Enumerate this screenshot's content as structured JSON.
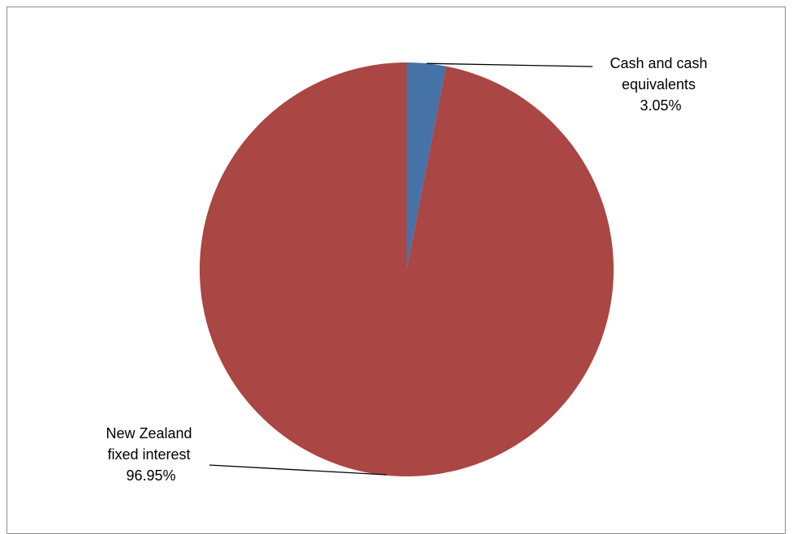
{
  "chart_data": {
    "type": "pie",
    "title": "",
    "slices": [
      {
        "name": "Cash and cash equivalents",
        "value": 3.05,
        "label_lines": [
          "Cash and cash",
          "equivalents",
          "3.05%"
        ],
        "color": "#4572A7"
      },
      {
        "name": "New Zealand fixed interest",
        "value": 96.95,
        "label_lines": [
          "New Zealand",
          "fixed interest",
          "96.95%"
        ],
        "color": "#AA4643"
      }
    ],
    "start_angle": "12 o'clock",
    "direction": "clockwise",
    "legend": "none",
    "leader_lines": true
  }
}
